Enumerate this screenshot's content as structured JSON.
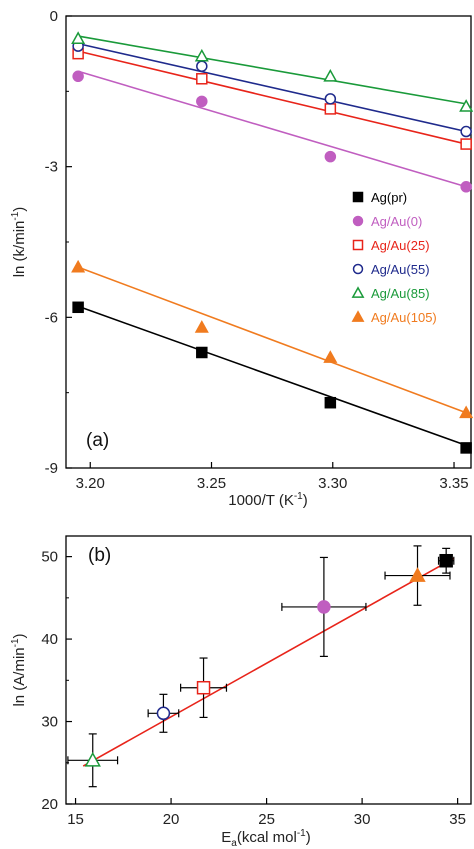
{
  "chart_data": [
    {
      "type": "scatter",
      "panel_label": "(a)",
      "xlabel": "1000/T (K",
      "xlabel_sup": "-1",
      "xlabel_end": ")",
      "ylabel": "ln (k/min",
      "ylabel_sup": "-1",
      "ylabel_end": ")",
      "xlim": [
        3.19,
        3.357
      ],
      "ylim": [
        -9,
        0
      ],
      "xticks": [
        3.2,
        3.25,
        3.3,
        3.35
      ],
      "xtick_labels": [
        "3.20",
        "3.25",
        "3.30",
        "3.35"
      ],
      "yticks": [
        0,
        -3,
        -6,
        -9
      ],
      "ytick_labels": [
        "0",
        "-3",
        "-6",
        "-9"
      ],
      "legend_position": "right",
      "series": [
        {
          "name": "Ag(pr)",
          "marker": "filled-square",
          "color": "#000000",
          "x": [
            3.195,
            3.246,
            3.299,
            3.355
          ],
          "y": [
            -5.8,
            -6.7,
            -7.7,
            -8.6
          ],
          "fit": [
            [
              3.195,
              -5.78
            ],
            [
              3.355,
              -8.55
            ]
          ]
        },
        {
          "name": "Ag/Au(0)",
          "marker": "filled-circle",
          "color": "#c05ec0",
          "x": [
            3.195,
            3.246,
            3.299,
            3.355
          ],
          "y": [
            -1.2,
            -1.7,
            -2.8,
            -3.4
          ],
          "fit": [
            [
              3.195,
              -1.1
            ],
            [
              3.355,
              -3.4
            ]
          ]
        },
        {
          "name": "Ag/Au(25)",
          "marker": "open-square",
          "color": "#e8241a",
          "x": [
            3.195,
            3.246,
            3.299,
            3.355
          ],
          "y": [
            -0.75,
            -1.25,
            -1.85,
            -2.55
          ],
          "fit": [
            [
              3.195,
              -0.7
            ],
            [
              3.355,
              -2.55
            ]
          ]
        },
        {
          "name": "Ag/Au(55)",
          "marker": "open-circle",
          "color": "#1f2a8c",
          "x": [
            3.195,
            3.246,
            3.299,
            3.355
          ],
          "y": [
            -0.6,
            -1.0,
            -1.65,
            -2.3
          ],
          "fit": [
            [
              3.195,
              -0.55
            ],
            [
              3.355,
              -2.3
            ]
          ]
        },
        {
          "name": "Ag/Au(85)",
          "marker": "open-triangle",
          "color": "#1a9a3a",
          "x": [
            3.195,
            3.246,
            3.299,
            3.355
          ],
          "y": [
            -0.45,
            -0.8,
            -1.2,
            -1.8
          ],
          "fit": [
            [
              3.195,
              -0.4
            ],
            [
              3.355,
              -1.75
            ]
          ]
        },
        {
          "name": "Ag/Au(105)",
          "marker": "filled-triangle",
          "color": "#f07b1f",
          "x": [
            3.195,
            3.246,
            3.299,
            3.355
          ],
          "y": [
            -5.0,
            -6.2,
            -6.8,
            -7.9
          ],
          "fit": [
            [
              3.195,
              -5.0
            ],
            [
              3.355,
              -7.9
            ]
          ]
        }
      ]
    },
    {
      "type": "scatter",
      "panel_label": "(b)",
      "xlabel": "E",
      "xlabel_sub": "a",
      "xlabel_end": "(kcal mol",
      "xlabel_sup": "-1",
      "xlabel_close": ")",
      "ylabel": "ln (A/min",
      "ylabel_sup": "-1",
      "ylabel_end": ")",
      "xlim": [
        14.5,
        35.7
      ],
      "ylim": [
        20,
        52.5
      ],
      "xticks": [
        15,
        20,
        25,
        30,
        35
      ],
      "xtick_labels": [
        "15",
        "20",
        "25",
        "30",
        "35"
      ],
      "yticks": [
        20,
        30,
        40,
        50
      ],
      "ytick_labels": [
        "20",
        "30",
        "40",
        "50"
      ],
      "fit_line": [
        [
          15.4,
          24.6
        ],
        [
          34.8,
          49.8
        ]
      ],
      "fit_color": "#e8241a",
      "points": [
        {
          "series": "Ag/Au(85)",
          "marker": "open-triangle",
          "color": "#1a9a3a",
          "x": 15.9,
          "y": 25.3,
          "xerr": 1.3,
          "yerr": 3.2
        },
        {
          "series": "Ag/Au(55)",
          "marker": "open-circle",
          "color": "#1f2a8c",
          "x": 19.6,
          "y": 31.0,
          "xerr": 0.8,
          "yerr": 2.3
        },
        {
          "series": "Ag/Au(25)",
          "marker": "open-square",
          "color": "#e8241a",
          "x": 21.7,
          "y": 34.1,
          "xerr": 1.2,
          "yerr": 3.6
        },
        {
          "series": "Ag/Au(0)",
          "marker": "filled-circle",
          "color": "#c05ec0",
          "x": 28.0,
          "y": 43.9,
          "xerr": 2.2,
          "yerr": 6.0
        },
        {
          "series": "Ag/Au(105)",
          "marker": "filled-triangle",
          "color": "#f07b1f",
          "x": 32.9,
          "y": 47.7,
          "xerr": 1.7,
          "yerr": 3.6
        },
        {
          "series": "Ag(pr)",
          "marker": "filled-square",
          "color": "#000000",
          "x": 34.4,
          "y": 49.5,
          "xerr": 0.4,
          "yerr": 1.5
        }
      ]
    }
  ]
}
